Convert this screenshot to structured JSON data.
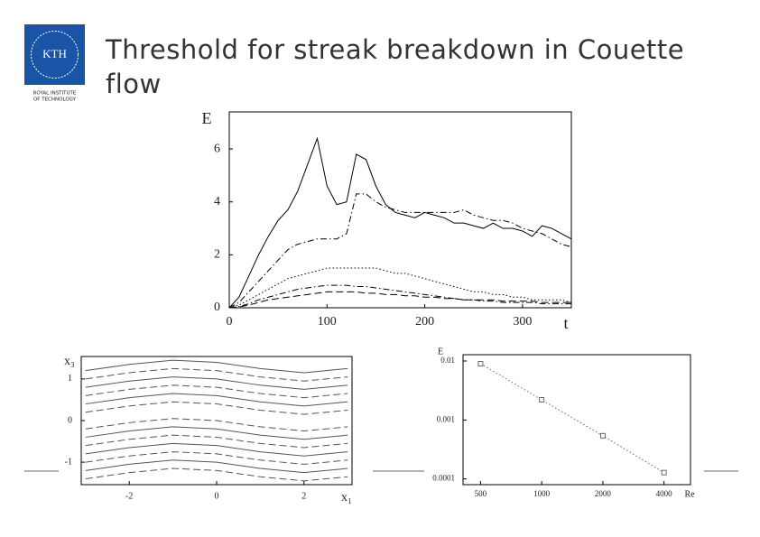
{
  "title": "Threshold for streak breakdown in Couette flow",
  "logo": {
    "name": "KTH",
    "caption": [
      "ROYAL INSTITUTE",
      "OF TECHNOLOGY"
    ]
  },
  "chart_data": [
    {
      "type": "line",
      "xlabel": "t",
      "ylabel": "E",
      "x": [
        0,
        10,
        20,
        30,
        40,
        50,
        60,
        70,
        80,
        90,
        100,
        110,
        120,
        130,
        140,
        150,
        160,
        170,
        180,
        190,
        200,
        210,
        220,
        230,
        240,
        250,
        260,
        270,
        280,
        290,
        300,
        310,
        320,
        330,
        340,
        350
      ],
      "series": [
        {
          "color": "#000000",
          "style": "solid",
          "values": [
            0,
            0.4,
            1.2,
            2.0,
            2.7,
            3.3,
            3.7,
            4.4,
            5.4,
            6.4,
            4.6,
            3.9,
            4.0,
            5.8,
            5.6,
            4.6,
            3.9,
            3.6,
            3.5,
            3.4,
            3.6,
            3.5,
            3.4,
            3.2,
            3.2,
            3.1,
            3.0,
            3.2,
            3.0,
            3.0,
            2.9,
            2.7,
            3.1,
            3.0,
            2.8,
            2.6
          ]
        },
        {
          "color": "#000000",
          "style": "dashdot",
          "values": [
            0,
            0.2,
            0.6,
            1.0,
            1.4,
            1.8,
            2.2,
            2.4,
            2.5,
            2.6,
            2.6,
            2.6,
            2.8,
            4.3,
            4.3,
            4.0,
            3.8,
            3.7,
            3.6,
            3.6,
            3.6,
            3.6,
            3.6,
            3.6,
            3.7,
            3.5,
            3.4,
            3.3,
            3.3,
            3.2,
            3.0,
            2.9,
            2.8,
            2.6,
            2.4,
            2.3
          ]
        },
        {
          "color": "#000000",
          "style": "dotted",
          "values": [
            0,
            0.1,
            0.3,
            0.5,
            0.7,
            0.9,
            1.1,
            1.2,
            1.3,
            1.4,
            1.5,
            1.5,
            1.5,
            1.5,
            1.5,
            1.5,
            1.4,
            1.3,
            1.3,
            1.2,
            1.1,
            1.0,
            0.9,
            0.8,
            0.7,
            0.6,
            0.6,
            0.5,
            0.5,
            0.4,
            0.4,
            0.3,
            0.3,
            0.3,
            0.3,
            0.2
          ]
        },
        {
          "color": "#000000",
          "style": "dashdot",
          "values": [
            0,
            0.05,
            0.15,
            0.3,
            0.4,
            0.5,
            0.6,
            0.7,
            0.75,
            0.8,
            0.85,
            0.85,
            0.85,
            0.8,
            0.8,
            0.75,
            0.7,
            0.65,
            0.6,
            0.55,
            0.5,
            0.45,
            0.4,
            0.35,
            0.3,
            0.3,
            0.25,
            0.25,
            0.2,
            0.2,
            0.2,
            0.2,
            0.15,
            0.15,
            0.15,
            0.15
          ]
        },
        {
          "color": "#000000",
          "style": "dashed",
          "values": [
            0,
            0.03,
            0.1,
            0.2,
            0.3,
            0.35,
            0.4,
            0.45,
            0.5,
            0.55,
            0.6,
            0.6,
            0.6,
            0.6,
            0.55,
            0.55,
            0.5,
            0.5,
            0.45,
            0.45,
            0.4,
            0.4,
            0.35,
            0.35,
            0.3,
            0.3,
            0.3,
            0.3,
            0.25,
            0.25,
            0.25,
            0.25,
            0.2,
            0.2,
            0.2,
            0.2
          ]
        }
      ],
      "xlim": [
        0,
        350
      ],
      "ylim": [
        0,
        7.4
      ],
      "xticks": [
        0,
        100,
        200,
        300
      ],
      "yticks": [
        0,
        2,
        4,
        6
      ]
    },
    {
      "type": "line",
      "xlabel": "x₁",
      "ylabel": "x₃",
      "x": [
        -3,
        -2,
        -1,
        0,
        1,
        2,
        3
      ],
      "series": [
        {
          "color": "#555555",
          "style": "solid",
          "values": [
            1.2,
            1.35,
            1.45,
            1.4,
            1.25,
            1.15,
            1.25
          ]
        },
        {
          "color": "#555555",
          "style": "dashed",
          "values": [
            1.0,
            1.15,
            1.25,
            1.2,
            1.05,
            0.95,
            1.05
          ]
        },
        {
          "color": "#555555",
          "style": "solid",
          "values": [
            0.8,
            0.95,
            1.05,
            1.0,
            0.85,
            0.75,
            0.85
          ]
        },
        {
          "color": "#555555",
          "style": "dashed",
          "values": [
            0.6,
            0.75,
            0.85,
            0.8,
            0.65,
            0.55,
            0.65
          ]
        },
        {
          "color": "#555555",
          "style": "solid",
          "values": [
            0.4,
            0.55,
            0.65,
            0.6,
            0.45,
            0.35,
            0.45
          ]
        },
        {
          "color": "#555555",
          "style": "dashed",
          "values": [
            0.2,
            0.35,
            0.45,
            0.4,
            0.25,
            0.15,
            0.25
          ]
        },
        {
          "color": "#555555",
          "style": "dashed",
          "values": [
            -0.2,
            -0.05,
            0.05,
            0,
            -0.15,
            -0.25,
            -0.15
          ]
        },
        {
          "color": "#555555",
          "style": "solid",
          "values": [
            -0.4,
            -0.25,
            -0.15,
            -0.2,
            -0.35,
            -0.45,
            -0.35
          ]
        },
        {
          "color": "#555555",
          "style": "dashed",
          "values": [
            -0.6,
            -0.45,
            -0.35,
            -0.4,
            -0.55,
            -0.65,
            -0.55
          ]
        },
        {
          "color": "#555555",
          "style": "solid",
          "values": [
            -0.8,
            -0.65,
            -0.55,
            -0.6,
            -0.75,
            -0.85,
            -0.75
          ]
        },
        {
          "color": "#555555",
          "style": "dashed",
          "values": [
            -1.0,
            -0.85,
            -0.75,
            -0.8,
            -0.95,
            -1.05,
            -0.95
          ]
        },
        {
          "color": "#555555",
          "style": "solid",
          "values": [
            -1.2,
            -1.05,
            -0.95,
            -1.0,
            -1.15,
            -1.25,
            -1.15
          ]
        },
        {
          "color": "#555555",
          "style": "dashed",
          "values": [
            -1.4,
            -1.25,
            -1.15,
            -1.2,
            -1.35,
            -1.45,
            -1.35
          ]
        }
      ],
      "xlim": [
        -3.1,
        3.1
      ],
      "ylim": [
        -1.54,
        1.54
      ],
      "xticks": [
        -2,
        0,
        2
      ],
      "yticks": [
        -1,
        0,
        1
      ]
    },
    {
      "type": "scatter",
      "xlabel": "Re",
      "ylabel": "E",
      "xlog": true,
      "ylog": true,
      "line": true,
      "x": [
        500,
        1000,
        2000,
        4000
      ],
      "series": [
        {
          "color": "#666666",
          "style": "dotted",
          "values": [
            0.009,
            0.0022,
            0.00054,
            0.000128
          ]
        }
      ],
      "xlim": [
        410,
        5400
      ],
      "ylim": [
        8e-05,
        0.0128
      ],
      "xticks": [
        500,
        1000,
        2000,
        4000
      ],
      "yticks": [
        0.0001,
        0.001,
        0.01
      ]
    }
  ]
}
